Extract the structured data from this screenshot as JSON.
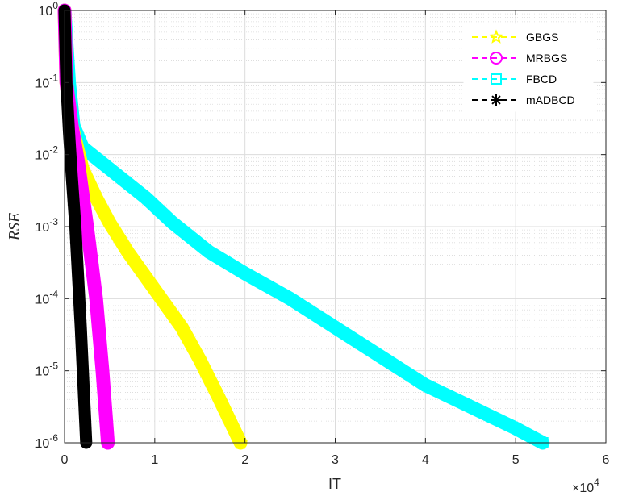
{
  "chart_data": {
    "type": "line",
    "xlabel": "IT",
    "ylabel": "RSE",
    "x_multiplier_label": "×10",
    "x_multiplier_exp": "4",
    "xlim": [
      0,
      6
    ],
    "ylim_log10": [
      -6,
      0
    ],
    "yscale": "log",
    "grid": true,
    "legend_position": "top-right",
    "xticks": [
      "0",
      "1",
      "2",
      "3",
      "4",
      "5",
      "6"
    ],
    "yticks": [
      {
        "base": "10",
        "exp": "0"
      },
      {
        "base": "10",
        "exp": "-1"
      },
      {
        "base": "10",
        "exp": "-2"
      },
      {
        "base": "10",
        "exp": "-3"
      },
      {
        "base": "10",
        "exp": "-4"
      },
      {
        "base": "10",
        "exp": "-5"
      },
      {
        "base": "10",
        "exp": "-6"
      }
    ],
    "series": [
      {
        "name": "GBGS",
        "color": "#ffff00",
        "marker": "star",
        "points": [
          [
            0,
            0
          ],
          [
            0.02,
            -1.0
          ],
          [
            0.08,
            -1.6
          ],
          [
            0.2,
            -2.2
          ],
          [
            0.35,
            -2.6
          ],
          [
            0.5,
            -2.95
          ],
          [
            0.7,
            -3.35
          ],
          [
            0.9,
            -3.7
          ],
          [
            1.1,
            -4.05
          ],
          [
            1.3,
            -4.4
          ],
          [
            1.5,
            -4.85
          ],
          [
            1.7,
            -5.35
          ],
          [
            1.95,
            -6.0
          ]
        ]
      },
      {
        "name": "MRBGS",
        "color": "#ff00ff",
        "marker": "circle",
        "points": [
          [
            0,
            0
          ],
          [
            0.02,
            -1.0
          ],
          [
            0.08,
            -1.6
          ],
          [
            0.15,
            -2.1
          ],
          [
            0.25,
            -3.0
          ],
          [
            0.35,
            -4.0
          ],
          [
            0.42,
            -5.0
          ],
          [
            0.48,
            -6.0
          ]
        ]
      },
      {
        "name": "FBCD",
        "color": "#00ffff",
        "marker": "square",
        "points": [
          [
            0,
            0
          ],
          [
            0.05,
            -1.0
          ],
          [
            0.1,
            -1.6
          ],
          [
            0.2,
            -1.9
          ],
          [
            0.4,
            -2.1
          ],
          [
            0.6,
            -2.3
          ],
          [
            0.9,
            -2.6
          ],
          [
            1.2,
            -2.95
          ],
          [
            1.6,
            -3.35
          ],
          [
            2.0,
            -3.65
          ],
          [
            2.5,
            -4.0
          ],
          [
            3.0,
            -4.4
          ],
          [
            3.5,
            -4.8
          ],
          [
            4.0,
            -5.2
          ],
          [
            4.5,
            -5.5
          ],
          [
            5.0,
            -5.8
          ],
          [
            5.3,
            -6.0
          ]
        ]
      },
      {
        "name": "mADBCD",
        "color": "#000000",
        "marker": "asterisk",
        "points": [
          [
            0,
            0
          ],
          [
            0.02,
            -1.0
          ],
          [
            0.05,
            -1.7
          ],
          [
            0.08,
            -2.3
          ],
          [
            0.12,
            -3.0
          ],
          [
            0.15,
            -3.7
          ],
          [
            0.18,
            -4.4
          ],
          [
            0.21,
            -5.2
          ],
          [
            0.24,
            -6.0
          ]
        ]
      }
    ]
  }
}
